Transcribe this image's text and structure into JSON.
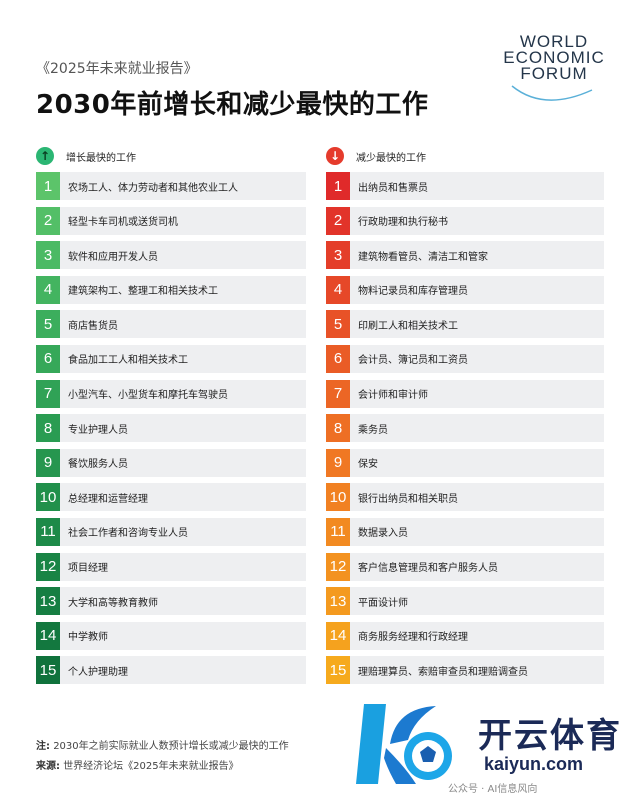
{
  "header": {
    "subtitle": "《2025年未来就业报告》",
    "title": "2030年前增长和减少最快的工作"
  },
  "logo": {
    "lines": [
      "WORLD",
      "ECONOMIC",
      "FORUM"
    ]
  },
  "colors": {
    "growth_arrow": "#2bb673",
    "decline_arrow": "#e53b2c"
  },
  "growth": {
    "icon": "arrow-up-icon",
    "header": "增长最快的工作",
    "items": [
      {
        "rank": "1",
        "label": "农场工人、体力劳动者和其他农业工人",
        "color": "#5cc46a"
      },
      {
        "rank": "2",
        "label": "轻型卡车司机或送货司机",
        "color": "#53bf67"
      },
      {
        "rank": "3",
        "label": "软件和应用开发人员",
        "color": "#4bba64"
      },
      {
        "rank": "4",
        "label": "建筑架构工、整理工和相关技术工",
        "color": "#43b460"
      },
      {
        "rank": "5",
        "label": "商店售货员",
        "color": "#3cae5d"
      },
      {
        "rank": "6",
        "label": "食品加工工人和相关技术工",
        "color": "#36a859"
      },
      {
        "rank": "7",
        "label": "小型汽车、小型货车和摩托车驾驶员",
        "color": "#30a256"
      },
      {
        "rank": "8",
        "label": "专业护理人员",
        "color": "#2a9c52"
      },
      {
        "rank": "9",
        "label": "餐饮服务人员",
        "color": "#26964f"
      },
      {
        "rank": "10",
        "label": "总经理和运营经理",
        "color": "#21904b"
      },
      {
        "rank": "11",
        "label": "社会工作者和咨询专业人员",
        "color": "#1d8a48"
      },
      {
        "rank": "12",
        "label": "项目经理",
        "color": "#198445"
      },
      {
        "rank": "13",
        "label": "大学和高等教育教师",
        "color": "#167e42"
      },
      {
        "rank": "14",
        "label": "中学教师",
        "color": "#13783f"
      },
      {
        "rank": "15",
        "label": "个人护理助理",
        "color": "#10723c"
      }
    ]
  },
  "decline": {
    "icon": "arrow-down-icon",
    "header": "减少最快的工作",
    "items": [
      {
        "rank": "1",
        "label": "出纳员和售票员",
        "color": "#e02a2a"
      },
      {
        "rank": "2",
        "label": "行政助理和执行秘书",
        "color": "#e2342a"
      },
      {
        "rank": "3",
        "label": "建筑物看管员、清洁工和管家",
        "color": "#e43e29"
      },
      {
        "rank": "4",
        "label": "物料记录员和库存管理员",
        "color": "#e64828"
      },
      {
        "rank": "5",
        "label": "印刷工人和相关技术工",
        "color": "#e85227"
      },
      {
        "rank": "6",
        "label": "会计员、簿记员和工资员",
        "color": "#ea5c26"
      },
      {
        "rank": "7",
        "label": "会计师和审计师",
        "color": "#ec6625"
      },
      {
        "rank": "8",
        "label": "乘务员",
        "color": "#ee6f24"
      },
      {
        "rank": "9",
        "label": "保安",
        "color": "#f07823"
      },
      {
        "rank": "10",
        "label": "银行出纳员和相关职员",
        "color": "#f18122"
      },
      {
        "rank": "11",
        "label": "数据录入员",
        "color": "#f28a21"
      },
      {
        "rank": "12",
        "label": "客户信息管理员和客户服务人员",
        "color": "#f39220"
      },
      {
        "rank": "13",
        "label": "平面设计师",
        "color": "#f49a1f"
      },
      {
        "rank": "14",
        "label": "商务服务经理和行政经理",
        "color": "#f5a21e"
      },
      {
        "rank": "15",
        "label": "理赔理算员、索赔审查员和理赔调查员",
        "color": "#f6aa1d"
      }
    ]
  },
  "footer": {
    "note_key": "注:",
    "note_text": "2030年之前实际就业人数预计增长或减少最快的工作",
    "source_key": "来源:",
    "source_text": "世界经济论坛《2025年未来就业报告》"
  },
  "watermark": {
    "title": "开云体育",
    "url": "kaiyun.com",
    "wechat": "公众号 · AI信息风向"
  }
}
